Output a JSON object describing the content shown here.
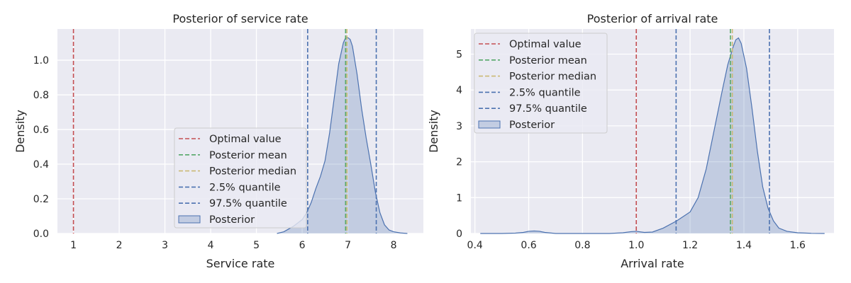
{
  "colors": {
    "axes_bg": "#EAEAF2",
    "grid": "#FFFFFF",
    "optimal": "#C44E52",
    "mean": "#55A868",
    "median": "#CCB974",
    "quantile": "#4C72B0",
    "posterior_line": "#4C72B0",
    "posterior_fill": "#4C72B0"
  },
  "chart_data": [
    {
      "type": "area",
      "title": "Posterior of service rate",
      "xlabel": "Service rate",
      "ylabel": "Density",
      "xlim": [
        0.65,
        8.65
      ],
      "ylim": [
        0,
        1.18
      ],
      "xticks": [
        1,
        2,
        3,
        4,
        5,
        6,
        7,
        8
      ],
      "xtick_labels": [
        "1",
        "2",
        "3",
        "4",
        "5",
        "6",
        "7",
        "8"
      ],
      "yticks": [
        0,
        0.2,
        0.4,
        0.6,
        0.8,
        1.0
      ],
      "ytick_labels": [
        "0.0",
        "0.2",
        "0.4",
        "0.6",
        "0.8",
        "1.0"
      ],
      "grid": true,
      "legend_position": "lower-center",
      "legend": [
        "Optimal value",
        "Posterior mean",
        "Posterior median",
        "2.5% quantile",
        "97.5% quantile",
        "Posterior"
      ],
      "vlines": {
        "optimal": 1.0,
        "mean": 6.95,
        "median": 6.98,
        "q025": 6.12,
        "q975": 7.62
      },
      "density": {
        "x": [
          5.45,
          5.6,
          5.8,
          6.0,
          6.1,
          6.2,
          6.3,
          6.4,
          6.5,
          6.6,
          6.7,
          6.8,
          6.9,
          6.95,
          7.0,
          7.05,
          7.1,
          7.2,
          7.3,
          7.4,
          7.5,
          7.6,
          7.7,
          7.8,
          7.9,
          8.0,
          8.15,
          8.3
        ],
        "y": [
          0.0,
          0.01,
          0.04,
          0.08,
          0.12,
          0.18,
          0.26,
          0.33,
          0.42,
          0.58,
          0.78,
          0.98,
          1.1,
          1.13,
          1.13,
          1.12,
          1.08,
          0.92,
          0.72,
          0.55,
          0.4,
          0.24,
          0.12,
          0.05,
          0.02,
          0.01,
          0.003,
          0.0
        ]
      }
    },
    {
      "type": "area",
      "title": "Posterior of arrival rate",
      "xlabel": "Arrival rate",
      "ylabel": "Density",
      "xlim": [
        0.385,
        1.735
      ],
      "ylim": [
        0,
        5.7
      ],
      "xticks": [
        0.4,
        0.6,
        0.8,
        1.0,
        1.2,
        1.4,
        1.6
      ],
      "xtick_labels": [
        "0.4",
        "0.6",
        "0.8",
        "1.0",
        "1.2",
        "1.4",
        "1.6"
      ],
      "yticks": [
        0,
        1,
        2,
        3,
        4,
        5
      ],
      "ytick_labels": [
        "0",
        "1",
        "2",
        "3",
        "4",
        "5"
      ],
      "grid": true,
      "legend_position": "upper-left",
      "legend": [
        "Optimal value",
        "Posterior mean",
        "Posterior median",
        "2.5% quantile",
        "97.5% quantile",
        "Posterior"
      ],
      "vlines": {
        "optimal": 1.0,
        "mean": 1.35,
        "median": 1.357,
        "q025": 1.148,
        "q975": 1.495
      },
      "density": {
        "x": [
          0.42,
          0.5,
          0.55,
          0.58,
          0.6,
          0.62,
          0.64,
          0.66,
          0.7,
          0.8,
          0.9,
          0.95,
          0.98,
          1.0,
          1.03,
          1.06,
          1.1,
          1.15,
          1.2,
          1.23,
          1.26,
          1.29,
          1.32,
          1.34,
          1.36,
          1.37,
          1.38,
          1.39,
          1.41,
          1.43,
          1.45,
          1.47,
          1.49,
          1.51,
          1.53,
          1.56,
          1.6,
          1.65,
          1.7
        ],
        "y": [
          0.0,
          0.0,
          0.01,
          0.03,
          0.06,
          0.07,
          0.06,
          0.03,
          0.0,
          0.0,
          0.0,
          0.02,
          0.05,
          0.06,
          0.03,
          0.04,
          0.15,
          0.35,
          0.6,
          1.0,
          1.8,
          2.9,
          4.0,
          4.7,
          5.2,
          5.4,
          5.45,
          5.3,
          4.6,
          3.5,
          2.3,
          1.3,
          0.7,
          0.35,
          0.15,
          0.06,
          0.02,
          0.005,
          0.0
        ]
      }
    }
  ]
}
